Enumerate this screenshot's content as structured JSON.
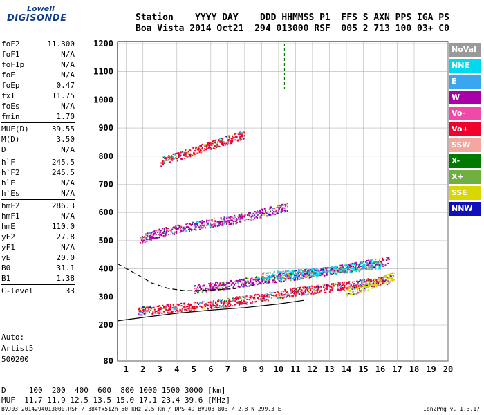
{
  "logo": {
    "line1": "Lowell",
    "line2": "DIGISONDE"
  },
  "header": {
    "line1": "Station    YYYY DAY    DDD HHMMSS P1  FFS S AXN PPS IGA PS",
    "line2": "Boa Vista 2014 Oct21  294 013000 RSF  005 2 713 100 03+ C0"
  },
  "params": [
    {
      "k": "foF2",
      "v": "11.300"
    },
    {
      "k": "foF1",
      "v": "N/A"
    },
    {
      "k": "foF1p",
      "v": "N/A"
    },
    {
      "k": "foE",
      "v": "N/A"
    },
    {
      "k": "foEp",
      "v": "0.47"
    },
    {
      "k": "fxI",
      "v": "11.75"
    },
    {
      "k": "foEs",
      "v": "N/A"
    },
    {
      "k": "fmin",
      "v": "1.70"
    },
    {
      "sep": true
    },
    {
      "k": "MUF(D)",
      "v": "39.55"
    },
    {
      "k": "M(D)",
      "v": "3.50"
    },
    {
      "k": "D",
      "v": "N/A"
    },
    {
      "sep": true
    },
    {
      "k": "h`F",
      "v": "245.5"
    },
    {
      "k": "h`F2",
      "v": "245.5"
    },
    {
      "k": "h`E",
      "v": "N/A"
    },
    {
      "k": "h`Es",
      "v": "N/A"
    },
    {
      "sep": true
    },
    {
      "k": "hmF2",
      "v": "286.3"
    },
    {
      "k": "hmF1",
      "v": "N/A"
    },
    {
      "k": "hmE",
      "v": "110.0"
    },
    {
      "k": "yF2",
      "v": "27.8"
    },
    {
      "k": "yF1",
      "v": "N/A"
    },
    {
      "k": "yE",
      "v": "20.0"
    },
    {
      "k": "B0",
      "v": "31.1"
    },
    {
      "k": "B1",
      "v": "1.38"
    },
    {
      "sep": true
    },
    {
      "k": "C-level",
      "v": "33"
    }
  ],
  "auto": {
    "line1": "Auto:",
    "line2": "Artist5",
    "line3": "500200"
  },
  "freq_table": {
    "d_label": "D",
    "d_values": "100  200  400  600  800 1000 1500 3000 [km]",
    "muf_label": "MUF",
    "muf_values": "11.7 11.9 12.5 13.5 15.0 17.1 23.4 39.6 [MHz]"
  },
  "footer": {
    "left": "BVJ03_2014294013000.RSF / 384fx512h 50 kHz 2.5 km / DPS-4D BVJ03 003 / 2.8 N 299.3 E",
    "version": "Ion2Png v. 1.3.17"
  },
  "legend": [
    {
      "name": "NoVal",
      "color": "#9a9a9a"
    },
    {
      "name": "NNE",
      "color": "#00d8f0"
    },
    {
      "name": "E",
      "color": "#3aa6ef"
    },
    {
      "name": "W",
      "color": "#a600a6"
    },
    {
      "name": "Vo-",
      "color": "#f04aa8"
    },
    {
      "name": "Vo+",
      "color": "#f0002a"
    },
    {
      "name": "SSW",
      "color": "#f3a79e"
    },
    {
      "name": "X-",
      "color": "#007a00"
    },
    {
      "name": "X+",
      "color": "#70b040"
    },
    {
      "name": "SSE",
      "color": "#d8d800"
    },
    {
      "name": "NNW",
      "color": "#1010b8"
    }
  ],
  "chart_data": {
    "type": "scatter",
    "xlabel": "",
    "ylabel": "",
    "xlim": [
      0.5,
      20
    ],
    "ylim": [
      80,
      1210
    ],
    "xticks": [
      1,
      2,
      3,
      4,
      5,
      6,
      7,
      8,
      9,
      10,
      11,
      12,
      13,
      14,
      15,
      16,
      17,
      18,
      19,
      20
    ],
    "yticks": [
      80,
      200,
      300,
      400,
      500,
      600,
      700,
      800,
      900,
      1000,
      1100,
      1200
    ],
    "grid": true,
    "traces": [
      {
        "series": "Vo+",
        "points": [
          [
            1.7,
            250
          ],
          [
            3,
            258
          ],
          [
            5,
            268
          ],
          [
            7,
            283
          ],
          [
            9,
            300
          ],
          [
            11,
            320
          ],
          [
            13,
            335
          ],
          [
            15,
            350
          ],
          [
            16.5,
            362
          ]
        ]
      },
      {
        "series": "W",
        "points": [
          [
            1.8,
            505
          ],
          [
            3,
            530
          ],
          [
            4.5,
            548
          ],
          [
            6,
            565
          ],
          [
            7.5,
            578
          ],
          [
            9,
            600
          ],
          [
            10.5,
            620
          ]
        ]
      },
      {
        "series": "Vo+",
        "points": [
          [
            3,
            780
          ],
          [
            4,
            800
          ],
          [
            5,
            820
          ],
          [
            6,
            840
          ],
          [
            7,
            860
          ],
          [
            8,
            878
          ]
        ]
      },
      {
        "series": "W",
        "points": [
          [
            5,
            330
          ],
          [
            7,
            345
          ],
          [
            9,
            362
          ],
          [
            11,
            378
          ],
          [
            13,
            395
          ],
          [
            15,
            415
          ],
          [
            16.5,
            430
          ]
        ]
      },
      {
        "series": "NNE",
        "points": [
          [
            9,
            375
          ],
          [
            11,
            383
          ],
          [
            13,
            395
          ],
          [
            15,
            410
          ],
          [
            16,
            415
          ]
        ]
      },
      {
        "series": "SSE",
        "points": [
          [
            14,
            320
          ],
          [
            15,
            335
          ],
          [
            16,
            360
          ],
          [
            16.8,
            375
          ]
        ]
      }
    ],
    "profile_solid": [
      [
        0.5,
        215
      ],
      [
        2,
        227
      ],
      [
        4,
        242
      ],
      [
        6,
        253
      ],
      [
        8,
        262
      ],
      [
        10,
        275
      ],
      [
        11.5,
        288
      ]
    ],
    "profile_dashed": [
      [
        0.5,
        418
      ],
      [
        1.5,
        385
      ],
      [
        2.5,
        350
      ],
      [
        3.5,
        330
      ],
      [
        4.5,
        322
      ],
      [
        6,
        324
      ],
      [
        7.5,
        330
      ]
    ],
    "vertical_marker": {
      "x": 10.35,
      "ymin": 1040,
      "ymax": 1200
    }
  }
}
